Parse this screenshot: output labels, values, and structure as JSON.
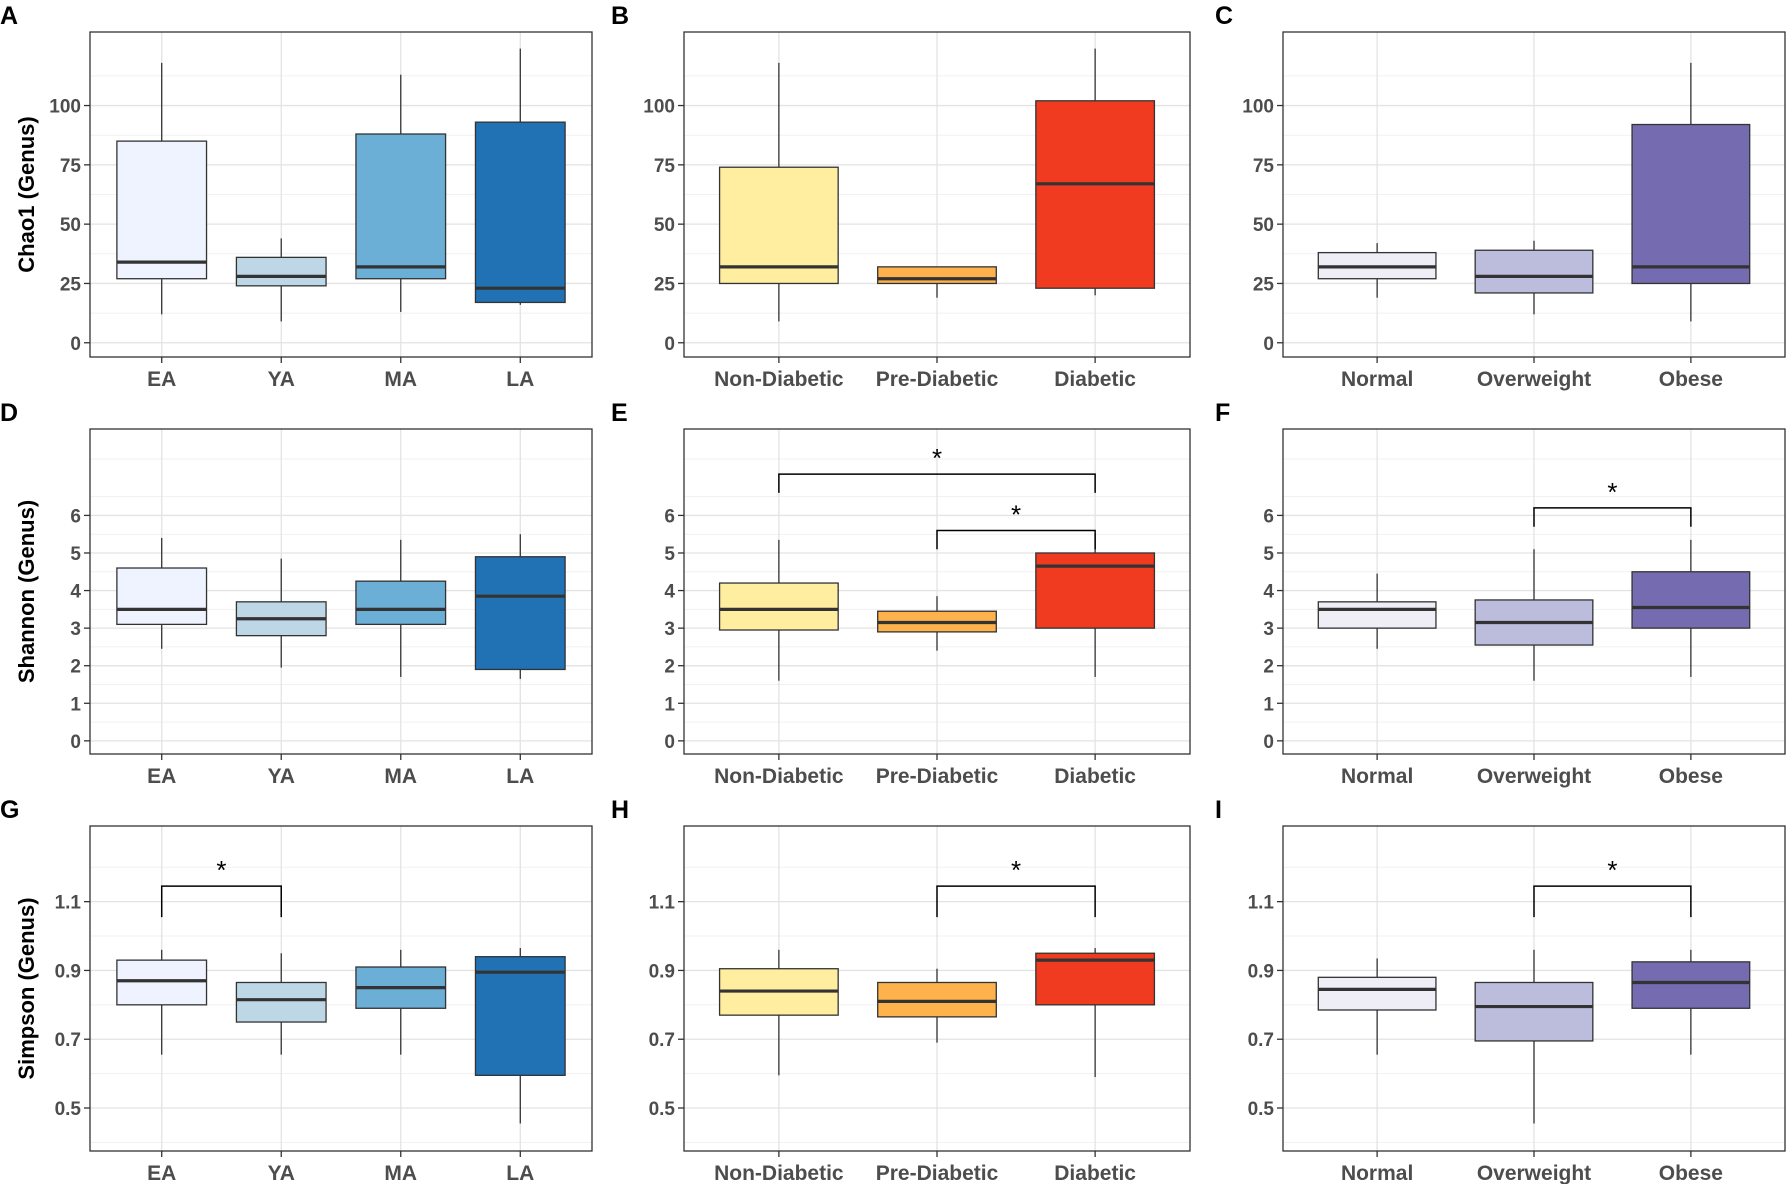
{
  "chart_data": [
    {
      "panel": "A",
      "type": "boxplot",
      "ylabel": "Chao1 (Genus)",
      "xlabel": "",
      "ylim": [
        -6,
        131
      ],
      "yticks": [
        0,
        25,
        50,
        75,
        100
      ],
      "ytick_labels": [
        "0",
        "25",
        "50",
        "75",
        "100"
      ],
      "categories": [
        "EA",
        "YA",
        "MA",
        "LA"
      ],
      "colors": [
        "#EFF3FF",
        "#BDD7E7",
        "#6BAED6",
        "#2171B5"
      ],
      "boxes": [
        {
          "low": 12,
          "q1": 27,
          "median": 34,
          "q3": 85,
          "high": 118
        },
        {
          "low": 9,
          "q1": 24,
          "median": 28,
          "q3": 36,
          "high": 44
        },
        {
          "low": 13,
          "q1": 27,
          "median": 32,
          "q3": 88,
          "high": 113
        },
        {
          "low": 16,
          "q1": 17,
          "median": 23,
          "q3": 93,
          "high": 124
        }
      ],
      "significance": []
    },
    {
      "panel": "B",
      "type": "boxplot",
      "ylabel": "",
      "xlabel": "",
      "ylim": [
        -6,
        131
      ],
      "yticks": [
        0,
        25,
        50,
        75,
        100
      ],
      "ytick_labels": [
        "0",
        "25",
        "50",
        "75",
        "100"
      ],
      "categories": [
        "Non-Diabetic",
        "Pre-Diabetic",
        "Diabetic"
      ],
      "colors": [
        "#FFEDA0",
        "#FEB24C",
        "#F03B20"
      ],
      "boxes": [
        {
          "low": 9,
          "q1": 25,
          "median": 32,
          "q3": 74,
          "high": 118
        },
        {
          "low": 19,
          "q1": 25,
          "median": 27,
          "q3": 32,
          "high": 32
        },
        {
          "low": 20,
          "q1": 23,
          "median": 67,
          "q3": 102,
          "high": 124
        }
      ],
      "significance": []
    },
    {
      "panel": "C",
      "type": "boxplot",
      "ylabel": "",
      "xlabel": "",
      "ylim": [
        -6,
        131
      ],
      "yticks": [
        0,
        25,
        50,
        75,
        100
      ],
      "ytick_labels": [
        "0",
        "25",
        "50",
        "75",
        "100"
      ],
      "categories": [
        "Normal",
        "Overweight",
        "Obese"
      ],
      "colors": [
        "#EFEDF5",
        "#BCBDDC",
        "#756BB1"
      ],
      "boxes": [
        {
          "low": 19,
          "q1": 27,
          "median": 32,
          "q3": 38,
          "high": 42
        },
        {
          "low": 12,
          "q1": 21,
          "median": 28,
          "q3": 39,
          "high": 43
        },
        {
          "low": 9,
          "q1": 25,
          "median": 32,
          "q3": 92,
          "high": 118
        }
      ],
      "significance": []
    },
    {
      "panel": "D",
      "type": "boxplot",
      "ylabel": "Shannon (Genus)",
      "xlabel": "",
      "ylim": [
        -0.35,
        8.3
      ],
      "yticks": [
        0,
        1,
        2,
        3,
        4,
        5,
        6
      ],
      "ytick_labels": [
        "0",
        "1",
        "2",
        "3",
        "4",
        "5",
        "6"
      ],
      "categories": [
        "EA",
        "YA",
        "MA",
        "LA"
      ],
      "colors": [
        "#EFF3FF",
        "#BDD7E7",
        "#6BAED6",
        "#2171B5"
      ],
      "boxes": [
        {
          "low": 2.45,
          "q1": 3.1,
          "median": 3.5,
          "q3": 4.6,
          "high": 5.4
        },
        {
          "low": 1.95,
          "q1": 2.8,
          "median": 3.25,
          "q3": 3.7,
          "high": 4.85
        },
        {
          "low": 1.7,
          "q1": 3.1,
          "median": 3.5,
          "q3": 4.25,
          "high": 5.35
        },
        {
          "low": 1.65,
          "q1": 1.9,
          "median": 3.85,
          "q3": 4.9,
          "high": 5.5
        }
      ],
      "significance": []
    },
    {
      "panel": "E",
      "type": "boxplot",
      "ylabel": "",
      "xlabel": "",
      "ylim": [
        -0.35,
        8.3
      ],
      "yticks": [
        0,
        1,
        2,
        3,
        4,
        5,
        6
      ],
      "ytick_labels": [
        "0",
        "1",
        "2",
        "3",
        "4",
        "5",
        "6"
      ],
      "categories": [
        "Non-Diabetic",
        "Pre-Diabetic",
        "Diabetic"
      ],
      "colors": [
        "#FFEDA0",
        "#FEB24C",
        "#F03B20"
      ],
      "boxes": [
        {
          "low": 1.6,
          "q1": 2.95,
          "median": 3.5,
          "q3": 4.2,
          "high": 5.35
        },
        {
          "low": 2.4,
          "q1": 2.9,
          "median": 3.15,
          "q3": 3.45,
          "high": 3.85
        },
        {
          "low": 1.7,
          "q1": 3.0,
          "median": 4.65,
          "q3": 5.0,
          "high": 5.5
        }
      ],
      "significance": [
        {
          "from": 0,
          "to": 2,
          "label": "*",
          "y": 7.1,
          "drop": 0.5
        },
        {
          "from": 1,
          "to": 2,
          "label": "*",
          "y": 5.6,
          "drop": 0.5
        }
      ]
    },
    {
      "panel": "F",
      "type": "boxplot",
      "ylabel": "",
      "xlabel": "",
      "ylim": [
        -0.35,
        8.3
      ],
      "yticks": [
        0,
        1,
        2,
        3,
        4,
        5,
        6
      ],
      "ytick_labels": [
        "0",
        "1",
        "2",
        "3",
        "4",
        "5",
        "6"
      ],
      "categories": [
        "Normal",
        "Overweight",
        "Obese"
      ],
      "colors": [
        "#EFEDF5",
        "#BCBDDC",
        "#756BB1"
      ],
      "boxes": [
        {
          "low": 2.45,
          "q1": 3.0,
          "median": 3.5,
          "q3": 3.7,
          "high": 4.45
        },
        {
          "low": 1.6,
          "q1": 2.55,
          "median": 3.15,
          "q3": 3.75,
          "high": 5.1
        },
        {
          "low": 1.7,
          "q1": 3.0,
          "median": 3.55,
          "q3": 4.5,
          "high": 5.35
        }
      ],
      "significance": [
        {
          "from": 1,
          "to": 2,
          "label": "*",
          "y": 6.2,
          "drop": 0.5
        }
      ]
    },
    {
      "panel": "G",
      "type": "boxplot",
      "ylabel": "Simpson (Genus)",
      "xlabel": "",
      "ylim": [
        0.375,
        1.32
      ],
      "yticks": [
        0.5,
        0.7,
        0.9,
        1.1
      ],
      "ytick_labels": [
        "0.5",
        "0.7",
        "0.9",
        "1.1"
      ],
      "categories": [
        "EA",
        "YA",
        "MA",
        "LA"
      ],
      "colors": [
        "#EFF3FF",
        "#BDD7E7",
        "#6BAED6",
        "#2171B5"
      ],
      "boxes": [
        {
          "low": 0.655,
          "q1": 0.8,
          "median": 0.87,
          "q3": 0.93,
          "high": 0.96
        },
        {
          "low": 0.655,
          "q1": 0.75,
          "median": 0.815,
          "q3": 0.865,
          "high": 0.95
        },
        {
          "low": 0.655,
          "q1": 0.79,
          "median": 0.85,
          "q3": 0.91,
          "high": 0.96
        },
        {
          "low": 0.455,
          "q1": 0.595,
          "median": 0.895,
          "q3": 0.94,
          "high": 0.965
        }
      ],
      "significance": [
        {
          "from": 0,
          "to": 1,
          "label": "*",
          "y": 1.145,
          "drop": 0.09
        }
      ]
    },
    {
      "panel": "H",
      "type": "boxplot",
      "ylabel": "",
      "xlabel": "",
      "ylim": [
        0.375,
        1.32
      ],
      "yticks": [
        0.5,
        0.7,
        0.9,
        1.1
      ],
      "ytick_labels": [
        "0.5",
        "0.7",
        "0.9",
        "1.1"
      ],
      "categories": [
        "Non-Diabetic",
        "Pre-Diabetic",
        "Diabetic"
      ],
      "colors": [
        "#FFEDA0",
        "#FEB24C",
        "#F03B20"
      ],
      "boxes": [
        {
          "low": 0.595,
          "q1": 0.77,
          "median": 0.84,
          "q3": 0.905,
          "high": 0.96
        },
        {
          "low": 0.69,
          "q1": 0.765,
          "median": 0.81,
          "q3": 0.865,
          "high": 0.905
        },
        {
          "low": 0.59,
          "q1": 0.8,
          "median": 0.93,
          "q3": 0.95,
          "high": 0.965
        }
      ],
      "significance": [
        {
          "from": 1,
          "to": 2,
          "label": "*",
          "y": 1.145,
          "drop": 0.09
        }
      ]
    },
    {
      "panel": "I",
      "type": "boxplot",
      "ylabel": "",
      "xlabel": "",
      "ylim": [
        0.375,
        1.32
      ],
      "yticks": [
        0.5,
        0.7,
        0.9,
        1.1
      ],
      "ytick_labels": [
        "0.5",
        "0.7",
        "0.9",
        "1.1"
      ],
      "categories": [
        "Normal",
        "Overweight",
        "Obese"
      ],
      "colors": [
        "#EFEDF5",
        "#BCBDDC",
        "#756BB1"
      ],
      "boxes": [
        {
          "low": 0.655,
          "q1": 0.785,
          "median": 0.845,
          "q3": 0.88,
          "high": 0.935
        },
        {
          "low": 0.455,
          "q1": 0.695,
          "median": 0.795,
          "q3": 0.865,
          "high": 0.96
        },
        {
          "low": 0.655,
          "q1": 0.79,
          "median": 0.865,
          "q3": 0.925,
          "high": 0.96
        }
      ],
      "significance": [
        {
          "from": 1,
          "to": 2,
          "label": "*",
          "y": 1.145,
          "drop": 0.09
        }
      ]
    }
  ]
}
